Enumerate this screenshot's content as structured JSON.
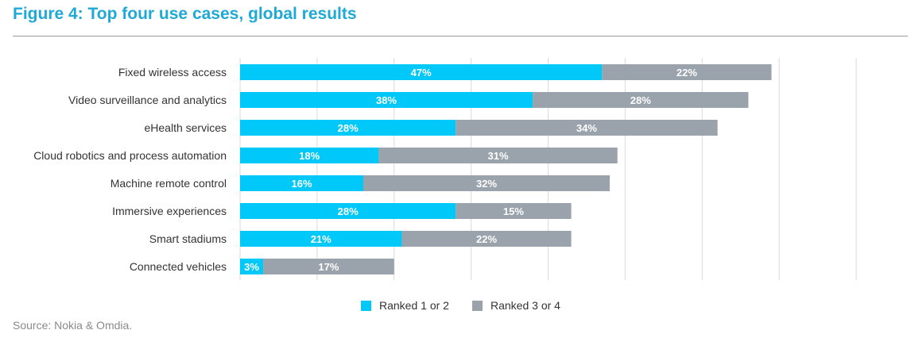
{
  "header": {
    "title": "Figure 4: Top four use cases, global results"
  },
  "footer": {
    "source": "Source: Nokia & Omdia."
  },
  "colors": {
    "title": "#1fa9d6",
    "series1": "#00c8f8",
    "series2": "#9aa2ab",
    "gridline": "#d9d9d9",
    "text": "#333333"
  },
  "chart_data": {
    "type": "bar",
    "orientation": "horizontal",
    "stacked": true,
    "title": "Figure 4: Top four use cases, global results",
    "xlabel": "",
    "ylabel": "",
    "xlim": [
      0,
      80
    ],
    "grid": true,
    "legend_position": "bottom",
    "categories": [
      "Fixed wireless access",
      "Video surveillance and analytics",
      "eHealth services",
      "Cloud robotics and process automation",
      "Machine remote control",
      "Immersive experiences",
      "Smart stadiums",
      "Connected vehicles"
    ],
    "series": [
      {
        "name": "Ranked 1 or 2",
        "values": [
          47,
          38,
          28,
          18,
          16,
          28,
          21,
          3
        ]
      },
      {
        "name": "Ranked 3 or 4",
        "values": [
          22,
          28,
          34,
          31,
          32,
          15,
          22,
          17
        ]
      }
    ]
  }
}
